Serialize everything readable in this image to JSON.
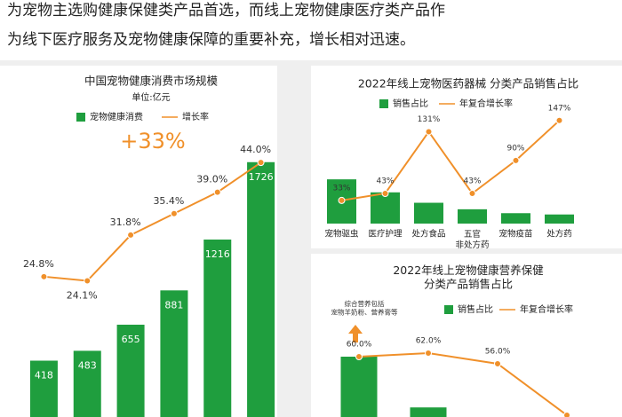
{
  "header": {
    "lines": [
      "为宠物主选购健康保健类产品首选，而线上宠物健康医疗类产品作",
      "为线下医疗服务及宠物健康保障的重要补充，增长相对迅速。"
    ]
  },
  "chart_data": [
    {
      "type": "bar_line",
      "title": "中国宠物健康消费市场规模",
      "subtitle": "单位:亿元",
      "annotation": "+33%",
      "categories": [
        null,
        null,
        null,
        null,
        null,
        null
      ],
      "ylim": [
        0,
        1900
      ],
      "y2lim": [
        0,
        48.5
      ],
      "series": [
        {
          "name": "宠物健康消费",
          "type": "bar",
          "color": "#1f9e3e",
          "values": [
            418,
            483,
            655,
            881,
            1216,
            1726
          ]
        },
        {
          "name": "增长率",
          "type": "line",
          "axis": "y2",
          "color": "#f0902a",
          "values": [
            24.8,
            24.1,
            31.8,
            35.4,
            39.0,
            44.0
          ],
          "value_labels": [
            "24.8%",
            "24.1%",
            "31.8%",
            "35.4%",
            "39.0%",
            "44.0%"
          ]
        }
      ]
    },
    {
      "type": "bar_line",
      "title": "2022年线上宠物医药器械 分类产品销售占比",
      "categories": [
        "宠物驱虫",
        "医疗护理",
        "处方食品",
        "五官\n非处方药",
        "宠物疫苗",
        "处方药"
      ],
      "ylim": [
        0,
        90
      ],
      "y2lim": [
        0,
        167
      ],
      "series": [
        {
          "name": "销售占比",
          "type": "bar",
          "color": "#1f9e3e",
          "values": [
            34,
            24,
            16,
            11,
            8,
            7
          ]
        },
        {
          "name": "年复合增长率",
          "type": "line",
          "axis": "y2",
          "color": "#f0902a",
          "values": [
            33,
            43,
            131,
            43,
            90,
            147
          ],
          "value_labels": [
            "33%",
            "43%",
            "131%",
            "43%",
            "90%",
            "147%"
          ]
        }
      ]
    },
    {
      "type": "bar_line",
      "title": "2022年线上宠物健康营养保健\n分类产品销售占比",
      "annotation": "综合营养包括\n宠物羊奶粉、营养膏等",
      "categories": [
        null,
        null,
        null,
        null
      ],
      "ylim": [
        0,
        100
      ],
      "y2lim": [
        16,
        126
      ],
      "series": [
        {
          "name": "销售占比",
          "type": "bar",
          "color": "#1f9e3e",
          "values": [
            40,
            14,
            null,
            null
          ]
        },
        {
          "name": "年复合增长率",
          "type": "line",
          "axis": "y2",
          "color": "#f0902a",
          "values": [
            60.0,
            62.0,
            56.0,
            27
          ],
          "value_labels": [
            "60.0%",
            "62.0%",
            "56.0%",
            null
          ]
        }
      ]
    }
  ]
}
